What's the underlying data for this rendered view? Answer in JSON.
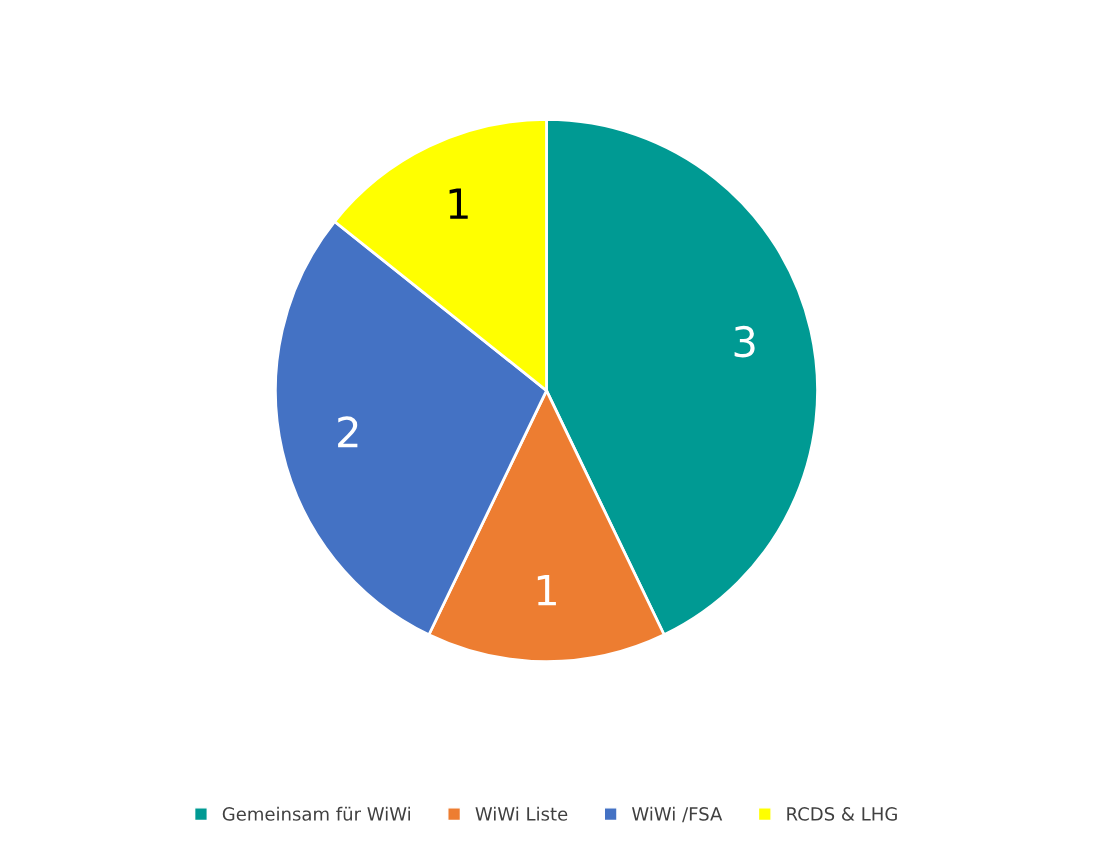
{
  "chart_data": {
    "type": "pie",
    "categories": [
      "Gemeinsam für WiWi",
      "WiWi Liste",
      "WiWi /FSA",
      "RCDS & LHG"
    ],
    "values": [
      3,
      1,
      2,
      1
    ],
    "colors": [
      "#009a93",
      "#ed7d31",
      "#4472c4",
      "#ffff00"
    ],
    "data_labels": true,
    "legend": "bottom"
  }
}
